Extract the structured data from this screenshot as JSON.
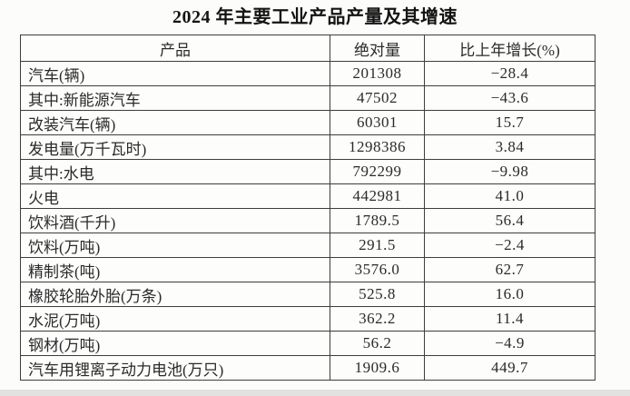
{
  "page": {
    "title": "2024 年主要工业产品产量及其增速"
  },
  "table": {
    "headers": [
      "产品",
      "绝对量",
      "比上年增长(%)"
    ],
    "rows": [
      {
        "product": "汽车(辆)",
        "absolute": "201308",
        "growth": "−28.4"
      },
      {
        "product": "其中:新能源汽车",
        "absolute": "47502",
        "growth": "−43.6"
      },
      {
        "product": "改装汽车(辆)",
        "absolute": "60301",
        "growth": "15.7"
      },
      {
        "product": "发电量(万千瓦时)",
        "absolute": "1298386",
        "growth": "3.84"
      },
      {
        "product": "其中:水电",
        "absolute": "792299",
        "growth": "−9.98"
      },
      {
        "product": "火电",
        "absolute": "442981",
        "growth": "41.0"
      },
      {
        "product": "饮料酒(千升)",
        "absolute": "1789.5",
        "growth": "56.4"
      },
      {
        "product": "饮料(万吨)",
        "absolute": "291.5",
        "growth": "−2.4"
      },
      {
        "product": "精制茶(吨)",
        "absolute": "3576.0",
        "growth": "62.7"
      },
      {
        "product": "橡胶轮胎外胎(万条)",
        "absolute": "525.8",
        "growth": "16.0"
      },
      {
        "product": "水泥(万吨)",
        "absolute": "362.2",
        "growth": "11.4"
      },
      {
        "product": "钢材(万吨)",
        "absolute": "56.2",
        "growth": "−4.9"
      },
      {
        "product": "汽车用锂离子动力电池(万只)",
        "absolute": "1909.6",
        "growth": "449.7"
      }
    ]
  },
  "colors": {
    "text": "#2a2a2a",
    "border": "#3d3d3d",
    "background": "#fcfcfb",
    "bottom_edge": "#e2e2e0"
  }
}
